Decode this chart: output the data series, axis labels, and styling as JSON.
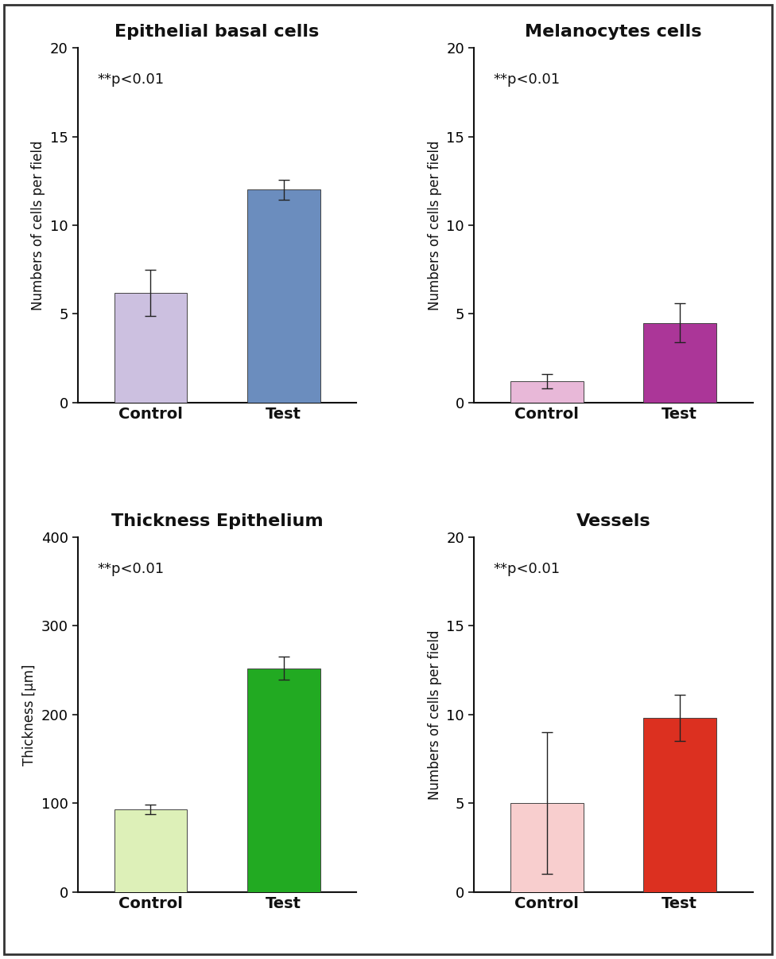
{
  "plots": [
    {
      "title": "Epithelial basal cells",
      "ylabel": "Numbers of cells per field",
      "categories": [
        "Control",
        "Test"
      ],
      "values": [
        6.2,
        12.0
      ],
      "errors": [
        1.3,
        0.55
      ],
      "bar_colors": [
        "#ccc0e0",
        "#6b8dbe"
      ],
      "ylim": [
        0,
        20
      ],
      "yticks": [
        0,
        5,
        10,
        15,
        20
      ],
      "pvalue_text": "**p<0.01"
    },
    {
      "title": "Melanocytes cells",
      "ylabel": "Numbers of cells per field",
      "categories": [
        "Control",
        "Test"
      ],
      "values": [
        1.2,
        4.5
      ],
      "errors": [
        0.4,
        1.1
      ],
      "bar_colors": [
        "#e8b8d8",
        "#ab3698"
      ],
      "ylim": [
        0,
        20
      ],
      "yticks": [
        0,
        5,
        10,
        15,
        20
      ],
      "pvalue_text": "**p<0.01"
    },
    {
      "title": "Thickness Epithelium",
      "ylabel": "Thickness [μm]",
      "categories": [
        "Control",
        "Test"
      ],
      "values": [
        93.0,
        252.0
      ],
      "errors": [
        5.0,
        13.0
      ],
      "bar_colors": [
        "#ddf0b8",
        "#22aa22"
      ],
      "ylim": [
        0,
        400
      ],
      "yticks": [
        0,
        100,
        200,
        300,
        400
      ],
      "pvalue_text": "**p<0.01"
    },
    {
      "title": "Vessels",
      "ylabel": "Numbers of cells per field",
      "categories": [
        "Control",
        "Test"
      ],
      "values": [
        5.0,
        9.8
      ],
      "errors": [
        4.0,
        1.3
      ],
      "bar_colors": [
        "#f8cece",
        "#dc3020"
      ],
      "ylim": [
        0,
        20
      ],
      "yticks": [
        0,
        5,
        10,
        15,
        20
      ],
      "pvalue_text": "**p<0.01"
    }
  ],
  "figure_bg": "#ffffff",
  "axes_bg": "#ffffff",
  "bar_width": 0.55,
  "title_fontsize": 16,
  "label_fontsize": 12,
  "tick_fontsize": 13,
  "pvalue_fontsize": 13,
  "xtick_fontsize": 14
}
